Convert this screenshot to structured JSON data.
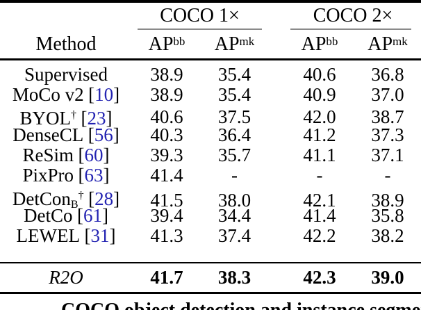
{
  "table": {
    "group_headers": [
      {
        "label": "COCO 1×"
      },
      {
        "label": "COCO 2×"
      }
    ],
    "method_header": "Method",
    "col_headers": [
      {
        "base": "AP",
        "sup": "bb"
      },
      {
        "base": "AP",
        "sup": "mk"
      },
      {
        "base": "AP",
        "sup": "bb"
      },
      {
        "base": "AP",
        "sup": "mk"
      }
    ],
    "rows": [
      {
        "method": {
          "name": "Supervised"
        },
        "values": [
          "38.9",
          "35.4",
          "40.6",
          "36.8"
        ]
      },
      {
        "method": {
          "name": "MoCo v2",
          "cite": {
            "open": "[",
            "num": "10",
            "close": "]"
          }
        },
        "values": [
          "38.9",
          "35.4",
          "40.9",
          "37.0"
        ]
      },
      {
        "method": {
          "name": "BYOL",
          "sup": "†",
          "cite": {
            "open": "[",
            "num": "23",
            "close": "]"
          }
        },
        "values": [
          "40.6",
          "37.5",
          "42.0",
          "38.7"
        ]
      },
      {
        "method": {
          "name": "DenseCL",
          "cite": {
            "open": "[",
            "num": "56",
            "close": "]"
          }
        },
        "values": [
          "40.3",
          "36.4",
          "41.2",
          "37.3"
        ]
      },
      {
        "method": {
          "name": "ReSim",
          "cite": {
            "open": "[",
            "num": "60",
            "close": "]"
          }
        },
        "values": [
          "39.3",
          "35.7",
          "41.1",
          "37.1"
        ]
      },
      {
        "method": {
          "name": "PixPro",
          "cite": {
            "open": "[",
            "num": "63",
            "close": "]"
          }
        },
        "values": [
          "41.4",
          "-",
          "-",
          "-"
        ]
      },
      {
        "method": {
          "name": "DetCon",
          "sub": "B",
          "sup": "†",
          "cite": {
            "open": "[",
            "num": "28",
            "close": "]"
          }
        },
        "values": [
          "41.5",
          "38.0",
          "42.1",
          "38.9"
        ]
      },
      {
        "method": {
          "name": "DetCo",
          "cite": {
            "open": "[",
            "num": "61",
            "close": "]"
          }
        },
        "values": [
          "39.4",
          "34.4",
          "41.4",
          "35.8"
        ]
      },
      {
        "method": {
          "name": "LEWEL",
          "cite": {
            "open": "[",
            "num": "31",
            "close": "]"
          }
        },
        "values": [
          "41.3",
          "37.4",
          "42.2",
          "38.2"
        ]
      }
    ],
    "result_row": {
      "method": {
        "name": "R2O"
      },
      "values": [
        "41.7",
        "38.3",
        "42.3",
        "39.0"
      ]
    }
  },
  "caption": "COCO object detection and instance segmentation",
  "colors": {
    "citation_blue": "#2323b2",
    "cmidrule_gray": "#8a8a8a",
    "rule_black": "#000000"
  }
}
